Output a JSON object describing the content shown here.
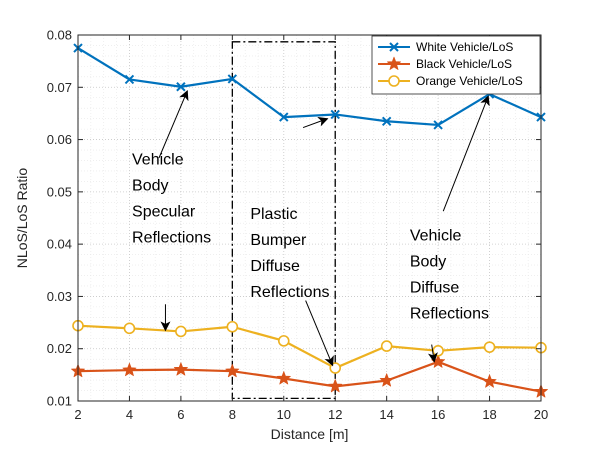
{
  "chart_data": {
    "type": "line",
    "xlabel": "Distance [m]",
    "ylabel": "NLoS/LoS Ratio",
    "xlim": [
      2,
      20
    ],
    "ylim": [
      0.01,
      0.08
    ],
    "xticks": [
      2,
      4,
      6,
      8,
      10,
      12,
      14,
      16,
      18,
      20
    ],
    "yticks": [
      0.01,
      0.02,
      0.03,
      0.04,
      0.05,
      0.06,
      0.07,
      0.08
    ],
    "grid": true,
    "minor_grid": true,
    "legend_position": "top-right",
    "x": [
      2,
      4,
      6,
      8,
      10,
      12,
      14,
      16,
      18,
      20
    ],
    "series": [
      {
        "name": "White Vehicle/LoS",
        "marker": "x",
        "color": "#0072BD",
        "values": [
          0.0775,
          0.0715,
          0.0701,
          0.0716,
          0.0643,
          0.0648,
          0.0635,
          0.0628,
          0.0687,
          0.0643
        ]
      },
      {
        "name": "Black Vehicle/LoS",
        "marker": "star",
        "color": "#D95319",
        "values": [
          0.0157,
          0.0159,
          0.016,
          0.0157,
          0.0143,
          0.0128,
          0.0139,
          0.0175,
          0.0137,
          0.0118
        ]
      },
      {
        "name": "Orange Vehicle/LoS",
        "marker": "circle",
        "color": "#EDB120",
        "values": [
          0.0244,
          0.0239,
          0.0233,
          0.0242,
          0.0215,
          0.0163,
          0.0205,
          0.0196,
          0.0203,
          0.0202
        ]
      }
    ],
    "annotations": [
      {
        "lines": [
          "Vehicle",
          "Body",
          "Specular",
          "Reflections"
        ],
        "text_at": [
          4.1,
          0.0552
        ],
        "arrows": [
          {
            "from": [
              5.15,
              0.0565
            ],
            "to": [
              6.25,
              0.0693
            ]
          },
          {
            "from": [
              5.4,
              0.0285
            ],
            "to": [
              5.4,
              0.0235
            ]
          }
        ]
      },
      {
        "lines": [
          "Plastic",
          "Bumper",
          "Diffuse",
          "Reflections"
        ],
        "text_at": [
          8.7,
          0.0448
        ],
        "arrows": [
          {
            "from": [
              10.75,
              0.0623
            ],
            "to": [
              11.7,
              0.064
            ]
          },
          {
            "from": [
              10.85,
              0.0292
            ],
            "to": [
              11.9,
              0.0168
            ]
          }
        ]
      },
      {
        "lines": [
          "Vehicle",
          "Body",
          "Diffuse",
          "Reflections"
        ],
        "text_at": [
          14.9,
          0.0407
        ],
        "arrows": [
          {
            "from": [
              16.2,
              0.0463
            ],
            "to": [
              17.95,
              0.0683
            ]
          },
          {
            "from": [
              15.75,
              0.0208
            ],
            "to": [
              15.85,
              0.0175
            ]
          }
        ]
      }
    ],
    "highlight_box": {
      "x": [
        8,
        12
      ],
      "y": [
        0.0105,
        0.0787
      ]
    }
  }
}
